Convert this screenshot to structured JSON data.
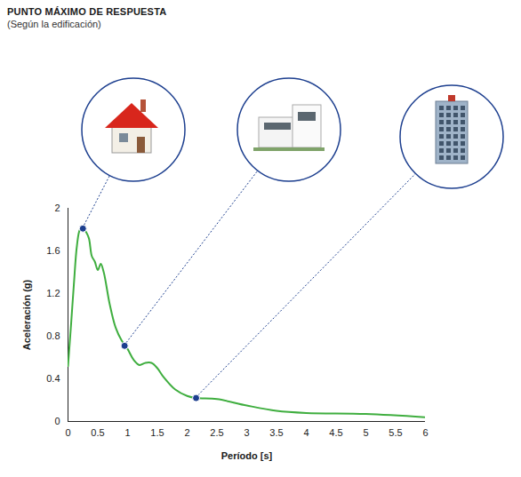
{
  "chart_data": {
    "type": "line",
    "title": "PUNTO MÁXIMO DE RESPUESTA",
    "subtitle": "(Según la edificación)",
    "x_label": "Período [s]",
    "y_label": "Aceleración (g)",
    "x": [
      0,
      0.05,
      0.1,
      0.15,
      0.2,
      0.25,
      0.3,
      0.35,
      0.4,
      0.45,
      0.5,
      0.55,
      0.6,
      0.7,
      0.8,
      0.9,
      1.0,
      1.1,
      1.2,
      1.3,
      1.4,
      1.5,
      1.6,
      1.8,
      2.0,
      2.15,
      2.5,
      3.0,
      3.5,
      4.0,
      5.0,
      6.0
    ],
    "values": [
      0.52,
      0.9,
      1.3,
      1.65,
      1.8,
      1.82,
      1.78,
      1.72,
      1.55,
      1.5,
      1.42,
      1.48,
      1.4,
      1.1,
      0.88,
      0.76,
      0.68,
      0.58,
      0.53,
      0.55,
      0.55,
      0.5,
      0.42,
      0.3,
      0.24,
      0.22,
      0.21,
      0.15,
      0.1,
      0.08,
      0.07,
      0.04
    ],
    "color": "#3fae3f",
    "markers": {
      "x": [
        0.25,
        0.95,
        2.15
      ],
      "values": [
        1.81,
        0.71,
        0.22
      ],
      "color": "#1d3f8f"
    },
    "xlim": [
      0,
      6
    ],
    "xticks": [
      0,
      0.5,
      1,
      1.5,
      2,
      2.5,
      3,
      3.5,
      4,
      4.5,
      5,
      5.5,
      6
    ],
    "ylim": [
      0,
      2
    ],
    "yticks": [
      0,
      0.4,
      0.8,
      1.2,
      1.6,
      2
    ],
    "grid": false
  }
}
